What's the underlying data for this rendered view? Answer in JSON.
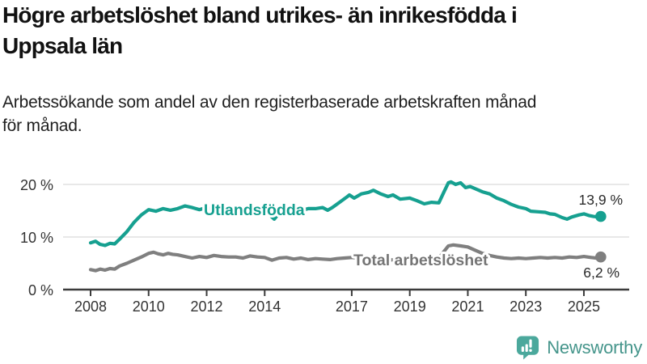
{
  "header": {
    "title": "Högre arbetslöshet bland utrikes- än inrikesfödda i\nUppsala län",
    "subtitle": "Arbetssökande som andel av den registerbaserade arbetskraften månad\nför månad."
  },
  "chart_data": {
    "type": "line",
    "title": "Högre arbetslöshet bland utrikes- än inrikesfödda i Uppsala län",
    "xlabel": "",
    "ylabel": "",
    "grid": "horizontal",
    "legend_position": "inline-labels",
    "xlim": [
      2007,
      2026.5
    ],
    "ylim": [
      0,
      24
    ],
    "x_ticks": [
      {
        "value": 2008,
        "label": "2008"
      },
      {
        "value": 2010,
        "label": "2010"
      },
      {
        "value": 2012,
        "label": "2012"
      },
      {
        "value": 2014,
        "label": "2014"
      },
      {
        "value": 2017,
        "label": "2017"
      },
      {
        "value": 2019,
        "label": "2019"
      },
      {
        "value": 2021,
        "label": "2021"
      },
      {
        "value": 2023,
        "label": "2023"
      },
      {
        "value": 2025,
        "label": "2025"
      }
    ],
    "y_ticks": [
      {
        "value": 0,
        "label": "0 %"
      },
      {
        "value": 10,
        "label": "10 %"
      },
      {
        "value": 20,
        "label": "20 %"
      }
    ],
    "series": [
      {
        "name": "Total arbetslöshet",
        "color": "#7f7f7f",
        "label_color": "#757575",
        "end_label": "6,2 %",
        "end_value": 6.2,
        "points": [
          [
            2008.0,
            3.8
          ],
          [
            2008.17,
            3.6
          ],
          [
            2008.33,
            3.9
          ],
          [
            2008.5,
            3.7
          ],
          [
            2008.67,
            4.0
          ],
          [
            2008.83,
            3.9
          ],
          [
            2009.0,
            4.5
          ],
          [
            2009.25,
            5.0
          ],
          [
            2009.5,
            5.6
          ],
          [
            2009.75,
            6.2
          ],
          [
            2010.0,
            6.9
          ],
          [
            2010.17,
            7.1
          ],
          [
            2010.33,
            6.8
          ],
          [
            2010.5,
            6.6
          ],
          [
            2010.67,
            6.9
          ],
          [
            2010.83,
            6.7
          ],
          [
            2011.0,
            6.6
          ],
          [
            2011.25,
            6.3
          ],
          [
            2011.5,
            6.0
          ],
          [
            2011.75,
            6.3
          ],
          [
            2012.0,
            6.1
          ],
          [
            2012.25,
            6.5
          ],
          [
            2012.5,
            6.3
          ],
          [
            2012.75,
            6.2
          ],
          [
            2013.0,
            6.2
          ],
          [
            2013.25,
            6.0
          ],
          [
            2013.5,
            6.4
          ],
          [
            2013.75,
            6.2
          ],
          [
            2014.0,
            6.1
          ],
          [
            2014.25,
            5.6
          ],
          [
            2014.5,
            6.0
          ],
          [
            2014.75,
            6.1
          ],
          [
            2015.0,
            5.8
          ],
          [
            2015.25,
            6.0
          ],
          [
            2015.5,
            5.7
          ],
          [
            2015.75,
            5.9
          ],
          [
            2016.0,
            5.8
          ],
          [
            2016.25,
            5.7
          ],
          [
            2016.5,
            5.9
          ],
          [
            2016.75,
            6.0
          ],
          [
            2017.0,
            6.1
          ],
          [
            2017.25,
            6.0
          ],
          [
            2017.5,
            6.2
          ],
          [
            2017.75,
            6.0
          ],
          [
            2018.0,
            5.9
          ],
          [
            2018.25,
            5.7
          ],
          [
            2018.5,
            5.6
          ],
          [
            2018.75,
            5.7
          ],
          [
            2019.0,
            5.5
          ],
          [
            2019.25,
            5.6
          ],
          [
            2019.5,
            5.4
          ],
          [
            2019.75,
            5.7
          ],
          [
            2020.0,
            6.0
          ],
          [
            2020.17,
            7.2
          ],
          [
            2020.33,
            8.3
          ],
          [
            2020.5,
            8.5
          ],
          [
            2020.75,
            8.3
          ],
          [
            2021.0,
            8.1
          ],
          [
            2021.25,
            7.5
          ],
          [
            2021.5,
            6.9
          ],
          [
            2021.75,
            6.5
          ],
          [
            2022.0,
            6.2
          ],
          [
            2022.25,
            6.0
          ],
          [
            2022.5,
            5.9
          ],
          [
            2022.75,
            6.0
          ],
          [
            2023.0,
            5.9
          ],
          [
            2023.25,
            6.0
          ],
          [
            2023.5,
            6.1
          ],
          [
            2023.75,
            6.0
          ],
          [
            2024.0,
            6.1
          ],
          [
            2024.25,
            6.0
          ],
          [
            2024.5,
            6.2
          ],
          [
            2024.75,
            6.1
          ],
          [
            2025.0,
            6.3
          ],
          [
            2025.25,
            6.1
          ],
          [
            2025.42,
            6.0
          ],
          [
            2025.58,
            6.2
          ]
        ]
      },
      {
        "name": "Utlandsfödda",
        "color": "#16a090",
        "label_color": "#16a090",
        "end_label": "13,9 %",
        "end_value": 13.9,
        "points": [
          [
            2008.0,
            8.9
          ],
          [
            2008.17,
            9.2
          ],
          [
            2008.33,
            8.6
          ],
          [
            2008.5,
            8.4
          ],
          [
            2008.67,
            8.8
          ],
          [
            2008.83,
            8.7
          ],
          [
            2009.0,
            9.6
          ],
          [
            2009.25,
            11.0
          ],
          [
            2009.5,
            12.8
          ],
          [
            2009.75,
            14.2
          ],
          [
            2010.0,
            15.2
          ],
          [
            2010.25,
            14.9
          ],
          [
            2010.5,
            15.4
          ],
          [
            2010.75,
            15.1
          ],
          [
            2011.0,
            15.4
          ],
          [
            2011.25,
            15.9
          ],
          [
            2011.5,
            15.6
          ],
          [
            2011.75,
            15.2
          ],
          [
            2012.0,
            15.6
          ],
          [
            2012.25,
            15.2
          ],
          [
            2012.5,
            15.6
          ],
          [
            2012.75,
            15.4
          ],
          [
            2013.0,
            15.8
          ],
          [
            2013.25,
            15.4
          ],
          [
            2013.5,
            15.2
          ],
          [
            2013.75,
            15.6
          ],
          [
            2014.0,
            15.1
          ],
          [
            2014.17,
            14.2
          ],
          [
            2014.33,
            13.4
          ],
          [
            2014.5,
            14.5
          ],
          [
            2014.75,
            15.0
          ],
          [
            2015.0,
            15.3
          ],
          [
            2015.25,
            15.0
          ],
          [
            2015.5,
            15.4
          ],
          [
            2015.75,
            15.4
          ],
          [
            2016.0,
            15.6
          ],
          [
            2016.17,
            15.1
          ],
          [
            2016.33,
            15.6
          ],
          [
            2016.58,
            16.6
          ],
          [
            2016.83,
            17.6
          ],
          [
            2016.92,
            18.0
          ],
          [
            2017.08,
            17.4
          ],
          [
            2017.33,
            18.2
          ],
          [
            2017.58,
            18.5
          ],
          [
            2017.75,
            18.9
          ],
          [
            2018.0,
            18.2
          ],
          [
            2018.25,
            17.7
          ],
          [
            2018.42,
            18.0
          ],
          [
            2018.67,
            17.2
          ],
          [
            2019.0,
            17.4
          ],
          [
            2019.25,
            16.9
          ],
          [
            2019.5,
            16.3
          ],
          [
            2019.75,
            16.6
          ],
          [
            2020.0,
            16.5
          ],
          [
            2020.17,
            18.5
          ],
          [
            2020.33,
            20.3
          ],
          [
            2020.42,
            20.5
          ],
          [
            2020.58,
            20.0
          ],
          [
            2020.75,
            20.3
          ],
          [
            2020.92,
            19.4
          ],
          [
            2021.08,
            19.6
          ],
          [
            2021.25,
            19.2
          ],
          [
            2021.5,
            18.6
          ],
          [
            2021.75,
            18.2
          ],
          [
            2022.0,
            17.4
          ],
          [
            2022.25,
            16.9
          ],
          [
            2022.5,
            16.2
          ],
          [
            2022.75,
            15.7
          ],
          [
            2023.0,
            15.4
          ],
          [
            2023.17,
            14.9
          ],
          [
            2023.42,
            14.8
          ],
          [
            2023.67,
            14.7
          ],
          [
            2023.83,
            14.4
          ],
          [
            2024.0,
            14.3
          ],
          [
            2024.25,
            13.7
          ],
          [
            2024.42,
            13.4
          ],
          [
            2024.58,
            13.8
          ],
          [
            2024.83,
            14.2
          ],
          [
            2025.0,
            14.4
          ],
          [
            2025.17,
            14.1
          ],
          [
            2025.33,
            13.9
          ],
          [
            2025.5,
            13.8
          ],
          [
            2025.58,
            13.9
          ]
        ]
      }
    ]
  },
  "footer": {
    "brand": "Newsworthy",
    "brand_color_icon": "#4ba89c",
    "brand_color_text": "#45958b",
    "logo_icon": "bar-chart-speech-bubble-icon"
  },
  "colors": {
    "foreign_born_line": "#16a090",
    "total_line": "#7f7f7f",
    "grid_line": "#d9d9d9",
    "axis_line": "#3b3b3b",
    "axis_text": "#333333",
    "value_label_text": "#2b2b2b"
  }
}
